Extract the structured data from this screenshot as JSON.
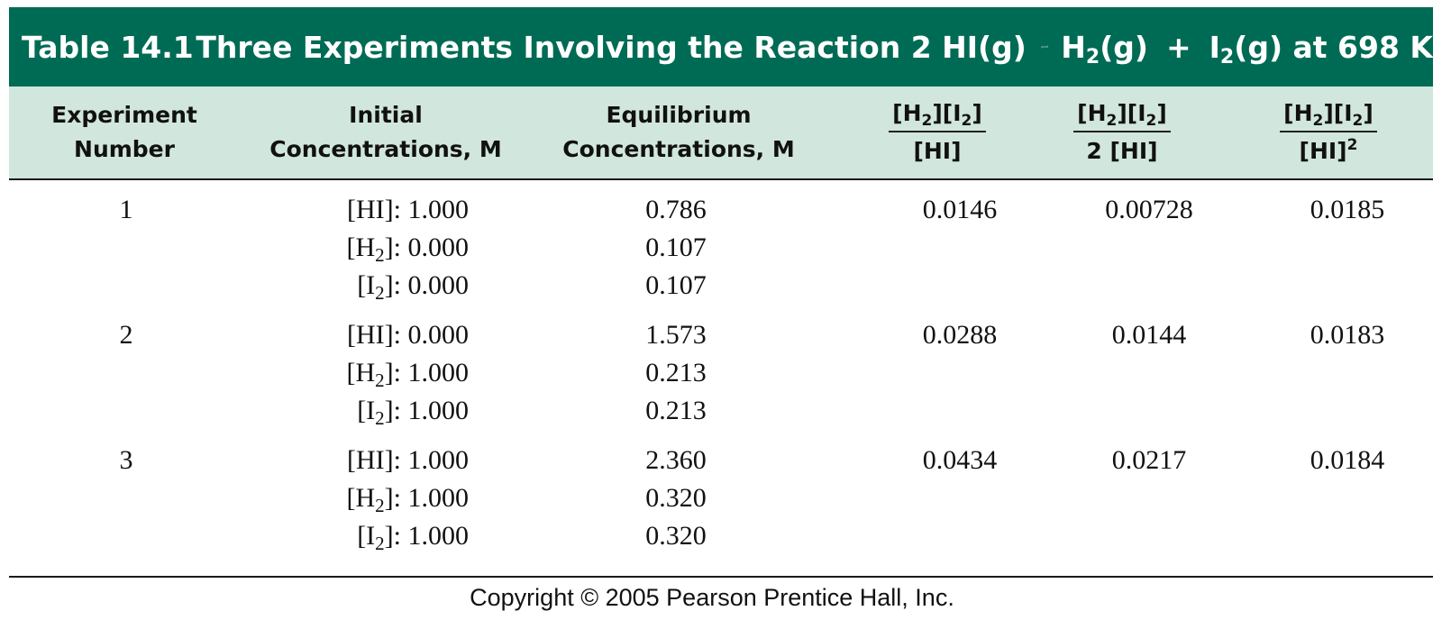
{
  "title": {
    "label": "Table 14.1",
    "text": "Three Experiments Involving the Reaction 2 HI(g)",
    "product1": "H",
    "product1_sub": "2",
    "product1_state": "(g)",
    "plus": "+",
    "product2": "I",
    "product2_sub": "2",
    "product2_state": "(g) at 698 K",
    "arrow_icon": "equilibrium-arrows"
  },
  "colors": {
    "title_bg": "#006b55",
    "header_bg": "#d1e6dc"
  },
  "headers": {
    "experiment": [
      "Experiment",
      "Number"
    ],
    "initial": [
      "Initial",
      "Concentrations, M"
    ],
    "equilibrium": [
      "Equilibrium",
      "Concentrations, M"
    ],
    "ratio1": {
      "num_h": "[H",
      "sub": "2",
      "num_mid": "][I",
      "num_end": "]",
      "den": "[HI]"
    },
    "ratio2": {
      "num_h": "[H",
      "sub": "2",
      "num_mid": "][I",
      "num_end": "]",
      "den": "2 [HI]"
    },
    "ratio3": {
      "num_h": "[H",
      "sub": "2",
      "num_mid": "][I",
      "num_end": "]",
      "den": "[HI]",
      "sup": "2"
    }
  },
  "experiments": [
    {
      "number": "1",
      "initial": [
        {
          "pre": "[HI]: ",
          "sub": "",
          "post": "",
          "value": "1.000"
        },
        {
          "pre": "[H",
          "sub": "2",
          "post": "]: ",
          "value": "0.000"
        },
        {
          "pre": "[I",
          "sub": "2",
          "post": "]: ",
          "value": "0.000"
        }
      ],
      "equilibrium": [
        "0.786",
        "0.107",
        "0.107"
      ],
      "ratio1": "0.0146",
      "ratio2": "0.00728",
      "ratio3": "0.0185"
    },
    {
      "number": "2",
      "initial": [
        {
          "pre": "[HI]: ",
          "sub": "",
          "post": "",
          "value": "0.000"
        },
        {
          "pre": "[H",
          "sub": "2",
          "post": "]: ",
          "value": "1.000"
        },
        {
          "pre": "[I",
          "sub": "2",
          "post": "]: ",
          "value": "1.000"
        }
      ],
      "equilibrium": [
        "1.573",
        "0.213",
        "0.213"
      ],
      "ratio1": "0.0288",
      "ratio2": "0.0144",
      "ratio3": "0.0183"
    },
    {
      "number": "3",
      "initial": [
        {
          "pre": "[HI]: ",
          "sub": "",
          "post": "",
          "value": "1.000"
        },
        {
          "pre": "[H",
          "sub": "2",
          "post": "]: ",
          "value": "1.000"
        },
        {
          "pre": "[I",
          "sub": "2",
          "post": "]: ",
          "value": "1.000"
        }
      ],
      "equilibrium": [
        "2.360",
        "0.320",
        "0.320"
      ],
      "ratio1": "0.0434",
      "ratio2": "0.0217",
      "ratio3": "0.0184"
    }
  ],
  "copyright": "Copyright © 2005 Pearson Prentice Hall, Inc."
}
